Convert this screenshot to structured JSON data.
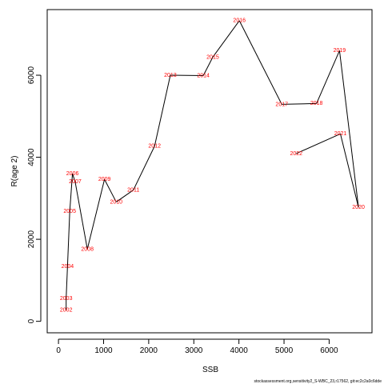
{
  "chart_data": {
    "type": "line",
    "xlabel": "SSB",
    "ylabel": "R(age 2)",
    "xlim": [
      -250,
      6950
    ],
    "ylim": [
      -280,
      7600
    ],
    "x_ticks": [
      0,
      1000,
      2000,
      3000,
      4000,
      5000,
      6000
    ],
    "y_ticks": [
      0,
      2000,
      4000,
      6000
    ],
    "grid": false,
    "points": [
      {
        "label": "2002",
        "x": 170,
        "y": 270
      },
      {
        "label": "2003",
        "x": 170,
        "y": 560
      },
      {
        "label": "2004",
        "x": 200,
        "y": 1340
      },
      {
        "label": "2005",
        "x": 250,
        "y": 2680
      },
      {
        "label": "2006",
        "x": 310,
        "y": 3600
      },
      {
        "label": "2007",
        "x": 370,
        "y": 3400
      },
      {
        "label": "2008",
        "x": 640,
        "y": 1760
      },
      {
        "label": "2009",
        "x": 1020,
        "y": 3460
      },
      {
        "label": "2010",
        "x": 1280,
        "y": 2910
      },
      {
        "label": "2011",
        "x": 1660,
        "y": 3200
      },
      {
        "label": "2012",
        "x": 2130,
        "y": 4270
      },
      {
        "label": "2013",
        "x": 2480,
        "y": 6000
      },
      {
        "label": "2014",
        "x": 3210,
        "y": 5990
      },
      {
        "label": "2015",
        "x": 3420,
        "y": 6440
      },
      {
        "label": "2016",
        "x": 4010,
        "y": 7330
      },
      {
        "label": "2017",
        "x": 4950,
        "y": 5290
      },
      {
        "label": "2018",
        "x": 5720,
        "y": 5310
      },
      {
        "label": "2019",
        "x": 6230,
        "y": 6600
      },
      {
        "label": "2020",
        "x": 6650,
        "y": 2780
      },
      {
        "label": "2021",
        "x": 6250,
        "y": 4570
      },
      {
        "label": "2022",
        "x": 5270,
        "y": 4090
      }
    ],
    "line_color": "#000000",
    "label_color": "#ff0000"
  },
  "footer": "stockassessment.org,sensitivity2_S-WBC_23,r17562, git:ec2c2a0c6dde"
}
